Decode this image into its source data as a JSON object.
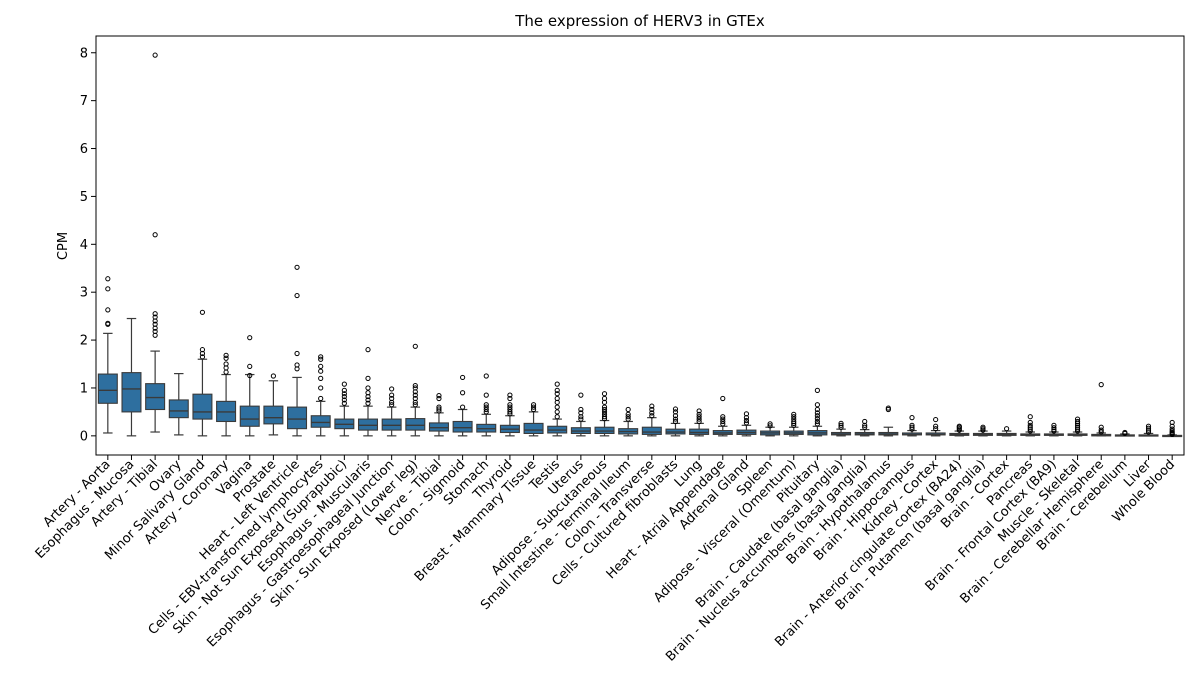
{
  "chart_data": {
    "type": "box",
    "title": "The expression of HERV3 in GTEx",
    "xlabel": "",
    "ylabel": "CPM",
    "ylim": [
      -0.4,
      8.35
    ],
    "yticks": [
      0,
      1,
      2,
      3,
      4,
      5,
      6,
      7,
      8
    ],
    "grid": false,
    "legend": "none",
    "box_color": "#2e6f9f",
    "line_color": "#3a3a3a",
    "categories": [
      "Artery - Aorta",
      "Esophagus - Mucosa",
      "Artery - Tibial",
      "Ovary",
      "Minor Salivary Gland",
      "Artery - Coronary",
      "Vagina",
      "Prostate",
      "Heart - Left Ventricle",
      "Cells - EBV-transformed lymphocytes",
      "Skin - Not Sun Exposed (Suprapubic)",
      "Esophagus - Muscularis",
      "Esophagus - Gastroesophageal Junction",
      "Skin - Sun Exposed (Lower leg)",
      "Nerve - Tibial",
      "Colon - Sigmoid",
      "Stomach",
      "Thyroid",
      "Breast - Mammary Tissue",
      "Testis",
      "Uterus",
      "Adipose - Subcutaneous",
      "Small Intestine - Terminal Ileum",
      "Colon - Transverse",
      "Cells - Cultured fibroblasts",
      "Lung",
      "Heart - Atrial Appendage",
      "Adrenal Gland",
      "Spleen",
      "Adipose - Visceral (Omentum)",
      "Pituitary",
      "Brain - Caudate (basal ganglia)",
      "Brain - Nucleus accumbens (basal ganglia)",
      "Brain - Hypothalamus",
      "Brain - Hippocampus",
      "Kidney - Cortex",
      "Brain - Anterior cingulate cortex (BA24)",
      "Brain - Putamen (basal ganglia)",
      "Brain - Cortex",
      "Pancreas",
      "Brain - Frontal Cortex (BA9)",
      "Muscle - Skeletal",
      "Brain - Cerebellar Hemisphere",
      "Brain - Cerebellum",
      "Liver",
      "Whole Blood"
    ],
    "boxes": [
      {
        "wlo": 0.06,
        "q1": 0.68,
        "med": 0.95,
        "q3": 1.29,
        "whi": 2.14,
        "outliers": [
          2.33,
          2.35,
          2.63,
          3.07,
          3.28
        ]
      },
      {
        "wlo": 0.0,
        "q1": 0.5,
        "med": 0.98,
        "q3": 1.32,
        "whi": 2.45,
        "outliers": []
      },
      {
        "wlo": 0.08,
        "q1": 0.55,
        "med": 0.8,
        "q3": 1.09,
        "whi": 1.77,
        "outliers": [
          2.1,
          2.18,
          2.25,
          2.33,
          2.4,
          2.48,
          2.55,
          4.2,
          7.95
        ]
      },
      {
        "wlo": 0.02,
        "q1": 0.38,
        "med": 0.52,
        "q3": 0.75,
        "whi": 1.3,
        "outliers": []
      },
      {
        "wlo": 0.0,
        "q1": 0.35,
        "med": 0.5,
        "q3": 0.87,
        "whi": 1.6,
        "outliers": [
          1.65,
          1.72,
          1.8,
          2.58
        ]
      },
      {
        "wlo": 0.0,
        "q1": 0.3,
        "med": 0.5,
        "q3": 0.72,
        "whi": 1.28,
        "outliers": [
          1.33,
          1.42,
          1.5,
          1.62,
          1.68
        ]
      },
      {
        "wlo": 0.0,
        "q1": 0.2,
        "med": 0.35,
        "q3": 0.62,
        "whi": 1.28,
        "outliers": [
          1.26,
          1.45,
          2.05
        ]
      },
      {
        "wlo": 0.02,
        "q1": 0.25,
        "med": 0.38,
        "q3": 0.62,
        "whi": 1.15,
        "outliers": [
          1.25
        ]
      },
      {
        "wlo": 0.0,
        "q1": 0.15,
        "med": 0.35,
        "q3": 0.6,
        "whi": 1.22,
        "outliers": [
          1.4,
          1.48,
          1.72,
          2.93,
          3.52
        ]
      },
      {
        "wlo": 0.0,
        "q1": 0.18,
        "med": 0.28,
        "q3": 0.42,
        "whi": 0.72,
        "outliers": [
          0.78,
          1.0,
          1.2,
          1.35,
          1.45,
          1.6,
          1.65
        ]
      },
      {
        "wlo": 0.0,
        "q1": 0.15,
        "med": 0.24,
        "q3": 0.35,
        "whi": 0.62,
        "outliers": [
          0.68,
          0.75,
          0.82,
          0.88,
          0.95,
          1.08
        ]
      },
      {
        "wlo": 0.0,
        "q1": 0.12,
        "med": 0.22,
        "q3": 0.35,
        "whi": 0.62,
        "outliers": [
          0.68,
          0.75,
          0.82,
          0.9,
          1.0,
          1.2,
          1.8
        ]
      },
      {
        "wlo": 0.0,
        "q1": 0.12,
        "med": 0.22,
        "q3": 0.35,
        "whi": 0.6,
        "outliers": [
          0.65,
          0.7,
          0.78,
          0.85,
          0.98
        ]
      },
      {
        "wlo": 0.0,
        "q1": 0.12,
        "med": 0.22,
        "q3": 0.36,
        "whi": 0.6,
        "outliers": [
          0.65,
          0.7,
          0.78,
          0.85,
          0.92,
          1.0,
          1.05,
          1.87
        ]
      },
      {
        "wlo": 0.0,
        "q1": 0.1,
        "med": 0.17,
        "q3": 0.27,
        "whi": 0.48,
        "outliers": [
          0.52,
          0.56,
          0.6,
          0.78,
          0.84
        ]
      },
      {
        "wlo": 0.0,
        "q1": 0.08,
        "med": 0.17,
        "q3": 0.3,
        "whi": 0.55,
        "outliers": [
          0.6,
          0.9,
          1.22
        ]
      },
      {
        "wlo": 0.0,
        "q1": 0.08,
        "med": 0.15,
        "q3": 0.24,
        "whi": 0.45,
        "outliers": [
          0.5,
          0.55,
          0.6,
          0.65,
          0.85,
          1.25
        ]
      },
      {
        "wlo": 0.0,
        "q1": 0.07,
        "med": 0.14,
        "q3": 0.22,
        "whi": 0.42,
        "outliers": [
          0.46,
          0.5,
          0.55,
          0.6,
          0.65,
          0.78,
          0.85
        ]
      },
      {
        "wlo": 0.0,
        "q1": 0.05,
        "med": 0.12,
        "q3": 0.26,
        "whi": 0.5,
        "outliers": [
          0.55,
          0.6,
          0.65
        ]
      },
      {
        "wlo": 0.0,
        "q1": 0.06,
        "med": 0.12,
        "q3": 0.2,
        "whi": 0.35,
        "outliers": [
          0.4,
          0.5,
          0.6,
          0.7,
          0.78,
          0.88,
          0.95,
          1.08
        ]
      },
      {
        "wlo": 0.0,
        "q1": 0.05,
        "med": 0.1,
        "q3": 0.17,
        "whi": 0.3,
        "outliers": [
          0.35,
          0.4,
          0.48,
          0.55,
          0.85
        ]
      },
      {
        "wlo": 0.0,
        "q1": 0.05,
        "med": 0.1,
        "q3": 0.18,
        "whi": 0.32,
        "outliers": [
          0.36,
          0.4,
          0.45,
          0.5,
          0.55,
          0.6,
          0.7,
          0.78,
          0.88
        ]
      },
      {
        "wlo": 0.0,
        "q1": 0.04,
        "med": 0.09,
        "q3": 0.15,
        "whi": 0.3,
        "outliers": [
          0.35,
          0.4,
          0.45,
          0.55
        ]
      },
      {
        "wlo": 0.0,
        "q1": 0.03,
        "med": 0.08,
        "q3": 0.18,
        "whi": 0.38,
        "outliers": [
          0.42,
          0.48,
          0.55,
          0.62
        ]
      },
      {
        "wlo": 0.0,
        "q1": 0.04,
        "med": 0.08,
        "q3": 0.14,
        "whi": 0.26,
        "outliers": [
          0.3,
          0.35,
          0.42,
          0.5,
          0.56
        ]
      },
      {
        "wlo": 0.0,
        "q1": 0.03,
        "med": 0.07,
        "q3": 0.14,
        "whi": 0.26,
        "outliers": [
          0.3,
          0.35,
          0.4,
          0.45,
          0.52
        ]
      },
      {
        "wlo": 0.0,
        "q1": 0.03,
        "med": 0.06,
        "q3": 0.11,
        "whi": 0.2,
        "outliers": [
          0.25,
          0.3,
          0.35,
          0.4,
          0.78
        ]
      },
      {
        "wlo": 0.0,
        "q1": 0.03,
        "med": 0.07,
        "q3": 0.12,
        "whi": 0.22,
        "outliers": [
          0.27,
          0.32,
          0.38,
          0.46
        ]
      },
      {
        "wlo": 0.0,
        "q1": 0.02,
        "med": 0.06,
        "q3": 0.1,
        "whi": 0.18,
        "outliers": [
          0.21,
          0.25
        ]
      },
      {
        "wlo": 0.0,
        "q1": 0.03,
        "med": 0.06,
        "q3": 0.1,
        "whi": 0.18,
        "outliers": [
          0.22,
          0.26,
          0.3,
          0.35,
          0.4,
          0.45
        ]
      },
      {
        "wlo": 0.0,
        "q1": 0.02,
        "med": 0.06,
        "q3": 0.11,
        "whi": 0.2,
        "outliers": [
          0.25,
          0.3,
          0.36,
          0.42,
          0.48,
          0.55,
          0.65,
          0.95
        ]
      },
      {
        "wlo": 0.0,
        "q1": 0.02,
        "med": 0.04,
        "q3": 0.07,
        "whi": 0.14,
        "outliers": [
          0.18,
          0.22,
          0.26
        ]
      },
      {
        "wlo": 0.0,
        "q1": 0.02,
        "med": 0.04,
        "q3": 0.07,
        "whi": 0.13,
        "outliers": [
          0.18,
          0.22,
          0.3
        ]
      },
      {
        "wlo": 0.0,
        "q1": 0.02,
        "med": 0.04,
        "q3": 0.07,
        "whi": 0.18,
        "outliers": [
          0.55,
          0.58
        ]
      },
      {
        "wlo": 0.0,
        "q1": 0.02,
        "med": 0.03,
        "q3": 0.06,
        "whi": 0.11,
        "outliers": [
          0.14,
          0.18,
          0.22,
          0.38
        ]
      },
      {
        "wlo": 0.0,
        "q1": 0.02,
        "med": 0.03,
        "q3": 0.06,
        "whi": 0.11,
        "outliers": [
          0.15,
          0.2,
          0.34
        ]
      },
      {
        "wlo": 0.0,
        "q1": 0.01,
        "med": 0.03,
        "q3": 0.05,
        "whi": 0.1,
        "outliers": [
          0.12,
          0.15,
          0.18,
          0.2
        ]
      },
      {
        "wlo": 0.0,
        "q1": 0.01,
        "med": 0.03,
        "q3": 0.05,
        "whi": 0.1,
        "outliers": [
          0.12,
          0.15,
          0.18
        ]
      },
      {
        "wlo": 0.0,
        "q1": 0.01,
        "med": 0.03,
        "q3": 0.05,
        "whi": 0.1,
        "outliers": [
          0.15
        ]
      },
      {
        "wlo": 0.0,
        "q1": 0.01,
        "med": 0.02,
        "q3": 0.04,
        "whi": 0.08,
        "outliers": [
          0.1,
          0.14,
          0.18,
          0.22,
          0.28,
          0.4
        ]
      },
      {
        "wlo": 0.0,
        "q1": 0.01,
        "med": 0.02,
        "q3": 0.04,
        "whi": 0.08,
        "outliers": [
          0.1,
          0.13,
          0.17,
          0.22
        ]
      },
      {
        "wlo": 0.0,
        "q1": 0.01,
        "med": 0.02,
        "q3": 0.04,
        "whi": 0.08,
        "outliers": [
          0.1,
          0.14,
          0.18,
          0.22,
          0.26,
          0.3,
          0.35
        ]
      },
      {
        "wlo": 0.0,
        "q1": 0.0,
        "med": 0.01,
        "q3": 0.03,
        "whi": 0.06,
        "outliers": [
          0.08,
          0.12,
          0.18,
          1.07
        ]
      },
      {
        "wlo": 0.0,
        "q1": 0.0,
        "med": 0.01,
        "q3": 0.02,
        "whi": 0.04,
        "outliers": [
          0.05,
          0.07
        ]
      },
      {
        "wlo": 0.0,
        "q1": 0.0,
        "med": 0.01,
        "q3": 0.02,
        "whi": 0.05,
        "outliers": [
          0.08,
          0.12,
          0.16,
          0.2
        ]
      },
      {
        "wlo": 0.0,
        "q1": 0.0,
        "med": 0.0,
        "q3": 0.01,
        "whi": 0.02,
        "outliers": [
          0.03,
          0.05,
          0.07,
          0.1,
          0.14,
          0.2,
          0.28
        ]
      }
    ]
  }
}
